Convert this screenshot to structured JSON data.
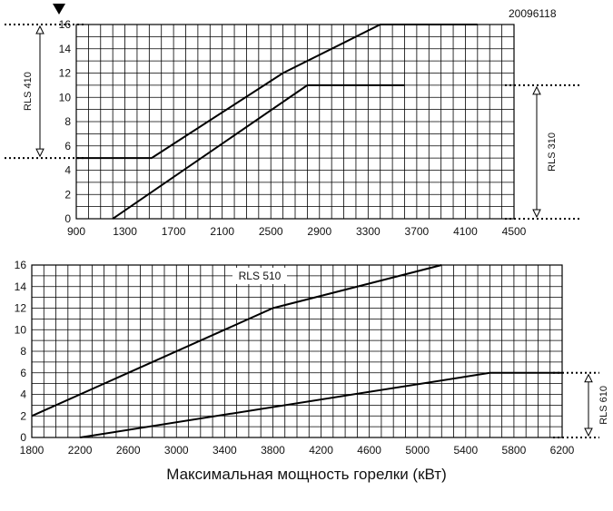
{
  "doc_id": "20096118",
  "caption": "Максимальная мощность горелки (кВт)",
  "chart_data": [
    {
      "type": "line",
      "title": "",
      "x_ticks": [
        900,
        1300,
        1700,
        2100,
        2500,
        2900,
        3300,
        3700,
        4100,
        4500
      ],
      "y_ticks": [
        0,
        2,
        4,
        6,
        8,
        10,
        12,
        14,
        16
      ],
      "xlim": [
        900,
        4500
      ],
      "ylim": [
        0,
        16
      ],
      "grid": true,
      "series": [
        {
          "name": "RLS 410",
          "x": [
            900,
            1520,
            2600,
            3400,
            4200
          ],
          "y": [
            5,
            5,
            12,
            16,
            16
          ]
        },
        {
          "name": "RLS 310",
          "x": [
            1200,
            2800,
            3600
          ],
          "y": [
            0,
            11,
            11
          ]
        }
      ],
      "ranges": [
        {
          "label": "RLS 410",
          "side": "left",
          "from": 5,
          "to": 16
        },
        {
          "label": "RLS 310",
          "side": "right",
          "from": 0,
          "to": 11
        }
      ]
    },
    {
      "type": "line",
      "title": "",
      "x_ticks": [
        1800,
        2200,
        2600,
        3000,
        3400,
        3800,
        4200,
        4600,
        5000,
        5400,
        5800,
        6200
      ],
      "y_ticks": [
        0,
        2,
        4,
        6,
        8,
        10,
        12,
        14,
        16
      ],
      "xlim": [
        1800,
        6200
      ],
      "ylim": [
        0,
        16
      ],
      "grid": true,
      "series": [
        {
          "name": "RLS 510",
          "x": [
            1800,
            3800,
            5200
          ],
          "y": [
            2,
            12,
            16
          ]
        },
        {
          "name": "RLS 610",
          "x": [
            2200,
            5600,
            6200
          ],
          "y": [
            0,
            6,
            6
          ]
        }
      ],
      "inline_label": "RLS 510",
      "ranges": [
        {
          "label": "RLS 610",
          "side": "right",
          "from": 0,
          "to": 6
        }
      ]
    }
  ]
}
